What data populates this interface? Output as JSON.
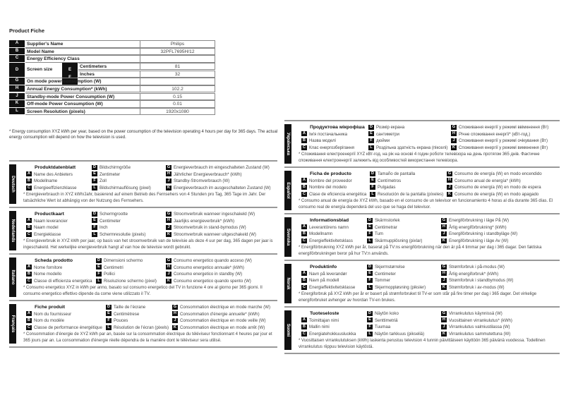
{
  "title": "Product Fiche",
  "fiche": {
    "rows": [
      {
        "letter": "A",
        "label": "Supplier's Name",
        "value": "Philips"
      },
      {
        "letter": "B",
        "label": "Model Name",
        "value": "32PFL7695H/12"
      },
      {
        "letter": "C",
        "label": "Energy Efficiency Class",
        "value": ""
      },
      {
        "letter": "D",
        "label": "Screen size",
        "sub": [
          {
            "letter": "E",
            "label": "Centimeters",
            "value": "81"
          },
          {
            "letter": "F",
            "label": "Inches",
            "value": "32"
          }
        ]
      },
      {
        "letter": "G",
        "label": "On mode power consumption (W)",
        "value": ""
      },
      {
        "letter": "H",
        "label": "Annual Energy Consumption* (kWh)",
        "value": "102.2"
      },
      {
        "letter": "J",
        "label": "Standby-mode Power Consumption (W)",
        "value": "0.15"
      },
      {
        "letter": "K",
        "label": "Off-mode Power Consumption (W)",
        "value": "0.01"
      },
      {
        "letter": "L",
        "label": "Screen Resolution (pixels)",
        "value": "1920x1080"
      }
    ],
    "footnote": "* Energy consumption XYZ kWh per year, based on the power consumption of the television operating 4 hours per day for 365 days. The actual energy consumption will depend on how the television is used."
  },
  "languages": [
    {
      "name": "Deutsch",
      "heading": "Produktdatenblatt",
      "A": "Name des Anbieters",
      "B": "Modellname",
      "C": "Energieeffizienzklasse",
      "D": "Bildschirmgröße",
      "E": "Zentimeter",
      "F": "Zoll",
      "L": "Bildschirmauflösung (pixel)",
      "G": "Energieverbrauch im eingeschalteten Zustand (W)",
      "H": "Jährlicher Energieverbrauch* (kWh)",
      "J": "Standby-Stromverbrauch (W)",
      "K": "Energieverbrauch im ausgeschalteten Zustand (W)",
      "note": "* Energieverbrauch in XYZ kWh/Jahr, basierend auf einem Betrieb des Fernsehers von 4 Stunden pro Tag, 365 Tage im Jahr. Der tatsächliche Wert ist abhängig von der Nutzung des Fernsehers."
    },
    {
      "name": "Nederlands",
      "heading": "Productkaart",
      "A": "Naam leverancier",
      "B": "Naam model",
      "C": "Energieklasse",
      "D": "Schermgrootte",
      "E": "Centimeter",
      "F": "Inch",
      "L": "Schermresolutie (pixels)",
      "G": "Stroomverbruik wanneer ingeschakeld (W)",
      "H": "Jaarlijks energieverbruik* (kWh)",
      "J": "Stroomverbruik in stand-bymodus (W)",
      "K": "Stroomverbruik wanneer uitgeschakeld (W)",
      "note": "* Energieverbruik in XYZ kWh per jaar, op basis van het stroomverbruik van de televisie als deze 4 uur per dag, 365 dagen per jaar is ingeschakeld. Het werkelijke energieverbruik hangt af van hoe de televisie wordt gebruikt."
    },
    {
      "name": "Italiano",
      "heading": "Scheda prodotto",
      "A": "Nome fornitore",
      "B": "Nome modello",
      "C": "Classe di efficienza energetica",
      "D": "Dimensioni schermo",
      "E": "Centimetri",
      "F": "Pollici",
      "L": "Risoluzione schermo (pixel)",
      "G": "Consumo energetico quando acceso (W)",
      "H": "Consumo energetico annuale* (kWh)",
      "J": "Consumo energetico in standby (W)",
      "K": "Consumo energetico quando spento (W)",
      "note": "* Consumo energetico XYZ in kWh per anno, basato sul consumo energetico del TV in funzione 4 ore al giorno per 365 giorni. Il consumo energetico effettivo dipende da come viene utilizzato il TV."
    },
    {
      "name": "Français",
      "heading": "Fiche produit",
      "A": "Nom du fournisseur",
      "B": "Nom du modèle",
      "C": "Classe de performance énergétique",
      "D": "Taille de l'écrane",
      "E": "Centimètrese",
      "F": "Pouces",
      "L": "Résolution de l'écran (pixels)",
      "G": "Consommation électrique en mode marche (W)",
      "H": "Consommation d'énergie annuelle* (kWh)",
      "J": "Consommation électrique en mode veille (W)",
      "K": "Consommation électrique en mode arrêt (W)",
      "note": "* Consommation d'énergie de XYZ kWh par an, basée sur la consommation électrique du téléviseur fonctionnant 4 heures par jour et 365 jours par an. La consommation d'énergie réelle dépendra de la manière dont le téléviseur sera utilisé."
    },
    {
      "name": "Українська",
      "heading": "Продуктова мікрофіша",
      "A": "Ім'я постачальника",
      "B": "Назва моделі",
      "C": "Клас енергозберігання",
      "D": "Розмір екрана",
      "E": "сантиметри",
      "F": "дюйми",
      "L": "Роздільна здатність екрана (пікселі)",
      "G": "Споживання енергії у режимі ввімкнення (Вт)",
      "H": "Річне споживання енергії* (кВт-год.)",
      "J": "Споживання енергії у режимі очікування (Вт)",
      "K": "Споживання енергії у режимі вимкнення (Вт)",
      "note": "* Споживання електроенергії XYZ кВт-год. на рік на основі 4 годин роботи телевізора на день протягом 365 днів. Фактичне споживання електроенергії залежить від особливостей використання телевізора."
    },
    {
      "name": "Español",
      "heading": "Ficha de producto",
      "A": "Nombre del proveedor",
      "B": "Nombre del modelo",
      "C": "Clase de eficiencia energética",
      "D": "Tamaño de pantalla",
      "E": "Centímetros",
      "F": "Pulgadas",
      "L": "Resolución de la pantalla (píxeles)",
      "G": "Consumo de energía (W) en modo encendido",
      "H": "Consumo anual de energía* (kWh)",
      "J": "Consumo de energía (W) en modo de espera",
      "K": "Consumo de energía (W) en modo apagado",
      "note": "* Consumo anual de energía de XYZ kWh, basado en el consumo de un televisor en funcionamiento 4 horas al día durante 365 días. El consumo real de energía dependerá del uso que se haga del televisor."
    },
    {
      "name": "Svenska",
      "heading": "Informationsblad",
      "A": "Leverantörens namn",
      "B": "Modellnamn",
      "C": "Energieffektivitetsklass",
      "D": "Skärmstorlek",
      "E": "Centimetrar",
      "F": "Tum",
      "L": "Skärmupplösning (pixlar)",
      "G": "Energiförbrukning i läge På (W)",
      "H": "Årlig energiförbrukning* (kWh)",
      "J": "Energiförbrukning i standbyläge (W)",
      "K": "Energiförbrukning i läge Av (W)",
      "note": "* Energiförbrukning XYZ kWh per år, baserat på TV:ns energiförbrukning när den är på 4 timmar per dag i 365 dagar. Den faktiska energiförbrukningen beror på hur TV:n används."
    },
    {
      "name": "Norsk",
      "heading": "Produktinfo",
      "A": "Navn på leverandør",
      "B": "Navn på modell",
      "C": "Energieffektivitetsklasse",
      "D": "Skjermstørrelse",
      "E": "Centimeter",
      "F": "Tommer",
      "L": "Skjermoppløsning (piksler)",
      "G": "Strømforbruk i på-modus (W)",
      "H": "Årlig energiforbruk* (kWh)",
      "J": "Strømforbruk i standbymodus (W)",
      "K": "Strømforbruk i av-modus (W)",
      "note": "* Energiforbruk på XYZ kWh per år er basert på strømforbruket til TV-er som står på fire timer per dag i 365 dager. Det virkelige energiforbruket avhenger av hvordan TV-en brukes."
    },
    {
      "name": "Suomi",
      "heading": "Tuoteseloste",
      "A": "Toimittajan nimi",
      "B": "Mallin nimi",
      "C": "Energiatehokkuusluokka",
      "D": "Näytön koko",
      "E": "Senttimetriä",
      "F": "Tuumaa",
      "L": "Näytön tarkkuus (pikseliä)",
      "G": "Virrankulutus käynnissä (W)",
      "H": "Vuosittainen virrankulutus* (kWh)",
      "J": "Virrankulutus valmiustilassa (W)",
      "K": "Virrankulutus sammutettuna (W)",
      "note": "* Vuosittaisen virrankulutuksen (kWh) laskenta perustuu television 4 tunnin päivittäiseen käyttöön 365 päivänä vuodessa. Todellinen virrankulutus riippuu television käytöstä."
    }
  ]
}
